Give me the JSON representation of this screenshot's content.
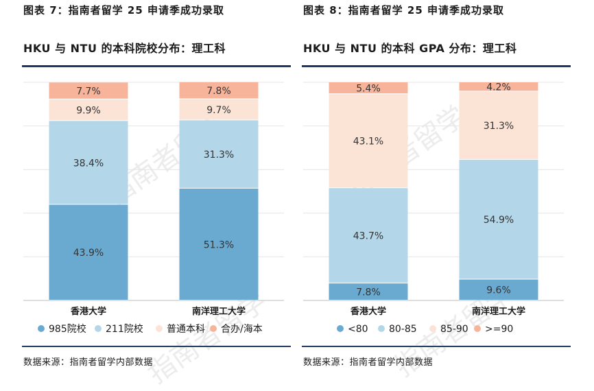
{
  "left": {
    "fig_title": "图表 7：指南者留学 25 申请季成功录取",
    "chart_title": "HKU 与 NTU 的本科院校分布：理工科",
    "source": "数据来源：指南者留学内部数据"
  },
  "right": {
    "fig_title": "图表 8：指南者留学 25 申请季成功录取",
    "chart_title": "HKU 与 NTU 的本科 GPA 分布：理工科",
    "source": "数据来源：指南者留学内部数据"
  },
  "watermark": "指南者留学",
  "chart_data": [
    {
      "type": "bar",
      "stacked": true,
      "percent": true,
      "categories": [
        "香港大学",
        "南洋理工大学"
      ],
      "series": [
        {
          "name": "985院校",
          "values": [
            43.9,
            51.3
          ],
          "color": "#6aaad1"
        },
        {
          "name": "211院校",
          "values": [
            38.4,
            31.3
          ],
          "color": "#b3d6e9"
        },
        {
          "name": "普通本科",
          "values": [
            9.9,
            9.7
          ],
          "color": "#fbe3d6"
        },
        {
          "name": "合办/海本",
          "values": [
            7.7,
            7.8
          ],
          "color": "#f7b49a"
        }
      ],
      "labels": [
        [
          "43.9%",
          "51.3%"
        ],
        [
          "38.4%",
          "31.3%"
        ],
        [
          "9.9%",
          "9.7%"
        ],
        [
          "7.7%",
          "7.8%"
        ]
      ],
      "ylim": [
        0,
        100
      ],
      "grid": true,
      "legend": "bottom"
    },
    {
      "type": "bar",
      "stacked": true,
      "percent": true,
      "categories": [
        "香港大学",
        "南洋理工大学"
      ],
      "series": [
        {
          "name": "<80",
          "values": [
            7.8,
            9.6
          ],
          "color": "#6aaad1"
        },
        {
          "name": "80-85",
          "values": [
            43.7,
            54.9
          ],
          "color": "#b3d6e9"
        },
        {
          "name": "85-90",
          "values": [
            43.1,
            31.3
          ],
          "color": "#fbe3d6"
        },
        {
          "name": ">=90",
          "values": [
            5.4,
            4.2
          ],
          "color": "#f7b49a"
        }
      ],
      "labels": [
        [
          "7.8%",
          "9.6%"
        ],
        [
          "43.7%",
          "54.9%"
        ],
        [
          "43.1%",
          "31.3%"
        ],
        [
          "5.4%",
          "4.2%"
        ]
      ],
      "ylim": [
        0,
        100
      ],
      "grid": true,
      "legend": "bottom"
    }
  ]
}
